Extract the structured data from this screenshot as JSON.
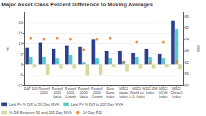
{
  "chart_data": {
    "type": "bar",
    "title": "Major Asset Class Percent Difference to Moving Averages",
    "categories": [
      "S&P 500",
      "Russell\n2000",
      "Russell\n1000\nValue",
      "Russell\n1000\nGrowth",
      "Russell\n2000\nValue",
      "Russell\n2000\nGrowth",
      "Euro\nStoxx\nIndex",
      "MSCI\nJapan\nIndex",
      "MSCI\nWorld ex\nU.S. Index",
      "MSCI EM\nIndex",
      "MSCI\nACWI\nIndex",
      "MSCI\nChina A\nIndex"
    ],
    "series": [
      {
        "name": "Last Px % Diff to 50 Day MVA",
        "type": "bar",
        "color": "#2e3f8f",
        "values": [
          8.0,
          10.5,
          7.5,
          9.0,
          8.5,
          12.0,
          6.5,
          6.5,
          5.5,
          7.5,
          5.0,
          21.0
        ]
      },
      {
        "name": "Last Px % Diff to 200 Day MVA",
        "type": "bar",
        "color": "#5bc8c8",
        "values": [
          3.5,
          3.5,
          3.0,
          4.5,
          1.0,
          3.0,
          3.0,
          1.5,
          3.5,
          3.5,
          3.0,
          17.0
        ]
      },
      {
        "name": "% Diff Between 50 and 200 Day MVA",
        "type": "bar",
        "color": "#d8d8a0",
        "values": [
          -1.5,
          -5.0,
          -2.0,
          -2.0,
          -5.5,
          -5.0,
          -1.5,
          -3.5,
          -2.0,
          -2.0,
          -1.5,
          -2.5
        ]
      },
      {
        "name": "14-Day RSI",
        "type": "scatter",
        "axis": "y2",
        "color": "#e87722",
        "values": [
          74.5,
          74.0,
          74.5,
          74.0,
          68.5,
          74.0,
          74.5,
          62.0,
          72.5,
          61.5,
          72.5,
          62.0
        ]
      }
    ],
    "ylabel": "%",
    "y2label": "RSI",
    "ylim": [
      -10,
      25
    ],
    "yticks": [
      -10,
      -5,
      0,
      5,
      10,
      15,
      20
    ],
    "y2lim": [
      50,
      88
    ],
    "y2ticks": [
      50,
      56,
      62,
      68,
      74,
      80,
      86
    ],
    "grid": true,
    "legend": "lower left"
  }
}
